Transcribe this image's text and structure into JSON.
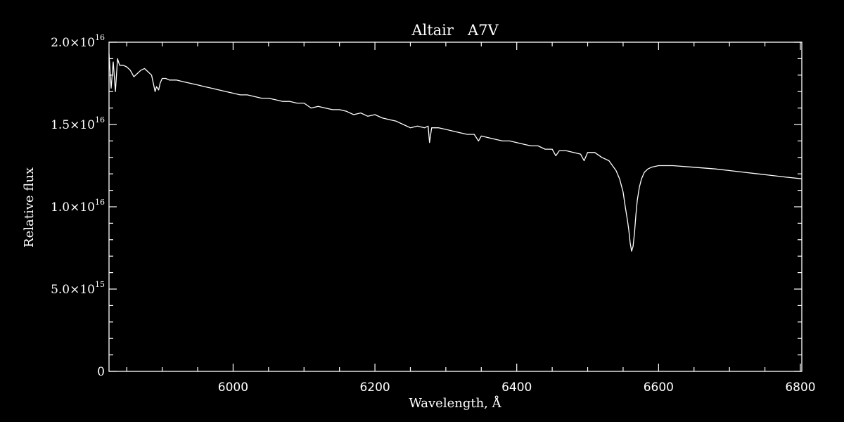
{
  "chart_data": {
    "type": "line",
    "title": "Altair   A7V",
    "xlabel": "Wavelength, Å",
    "ylabel": "Relative flux",
    "xlim": [
      5825,
      6802
    ],
    "ylim": [
      0,
      2e+16
    ],
    "x_ticks": [
      {
        "value": 6000,
        "label": "6000"
      },
      {
        "value": 6200,
        "label": "6200"
      },
      {
        "value": 6400,
        "label": "6400"
      },
      {
        "value": 6600,
        "label": "6600"
      },
      {
        "value": 6800,
        "label": "6800"
      }
    ],
    "y_ticks": [
      {
        "value": 0,
        "mantissa": "0",
        "exp": ""
      },
      {
        "value": 5000000000000000.0,
        "mantissa": "5.0×10",
        "exp": "15"
      },
      {
        "value": 1e+16,
        "mantissa": "1.0×10",
        "exp": "16"
      },
      {
        "value": 1.5e+16,
        "mantissa": "1.5×10",
        "exp": "16"
      },
      {
        "value": 2e+16,
        "mantissa": "2.0×10",
        "exp": "16"
      }
    ],
    "grid": false,
    "colors": {
      "background": "#000000",
      "foreground": "#ffffff"
    },
    "series": [
      {
        "x": [
          5825,
          5828,
          5831,
          5834,
          5837,
          5840,
          5845,
          5850,
          5855,
          5860,
          5865,
          5870,
          5875,
          5880,
          5885,
          5888,
          5890,
          5892,
          5895,
          5897,
          5900,
          5905,
          5910,
          5920,
          5930,
          5940,
          5950,
          5960,
          5970,
          5980,
          5990,
          6000,
          6010,
          6020,
          6030,
          6040,
          6050,
          6060,
          6070,
          6080,
          6090,
          6100,
          6110,
          6120,
          6130,
          6140,
          6150,
          6160,
          6170,
          6180,
          6190,
          6200,
          6210,
          6220,
          6230,
          6240,
          6250,
          6260,
          6270,
          6275,
          6277,
          6280,
          6290,
          6300,
          6310,
          6320,
          6330,
          6340,
          6346,
          6350,
          6360,
          6370,
          6380,
          6390,
          6400,
          6410,
          6420,
          6430,
          6440,
          6450,
          6455,
          6460,
          6470,
          6480,
          6490,
          6495,
          6500,
          6510,
          6520,
          6530,
          6540,
          6545,
          6550,
          6553,
          6556,
          6558,
          6560,
          6562,
          6564,
          6566,
          6568,
          6570,
          6573,
          6576,
          6580,
          6585,
          6590,
          6600,
          6620,
          6650,
          6680,
          6700,
          6720,
          6740,
          6760,
          6780,
          6802
        ],
        "y": [
          1.93e+16,
          1.72e+16,
          1.88e+16,
          1.7e+16,
          1.9e+16,
          1.86e+16,
          1.86e+16,
          1.85e+16,
          1.83e+16,
          1.79e+16,
          1.81e+16,
          1.83e+16,
          1.84e+16,
          1.82e+16,
          1.8e+16,
          1.74e+16,
          1.7e+16,
          1.73e+16,
          1.71e+16,
          1.75e+16,
          1.78e+16,
          1.78e+16,
          1.77e+16,
          1.77e+16,
          1.76e+16,
          1.75e+16,
          1.74e+16,
          1.73e+16,
          1.72e+16,
          1.71e+16,
          1.7e+16,
          1.69e+16,
          1.68e+16,
          1.68e+16,
          1.67e+16,
          1.66e+16,
          1.66e+16,
          1.65e+16,
          1.64e+16,
          1.64e+16,
          1.63e+16,
          1.63e+16,
          1.6e+16,
          1.61e+16,
          1.6e+16,
          1.59e+16,
          1.59e+16,
          1.58e+16,
          1.56e+16,
          1.57e+16,
          1.55e+16,
          1.56e+16,
          1.54e+16,
          1.53e+16,
          1.52e+16,
          1.5e+16,
          1.48e+16,
          1.49e+16,
          1.48e+16,
          1.49e+16,
          1.39e+16,
          1.48e+16,
          1.48e+16,
          1.47e+16,
          1.46e+16,
          1.45e+16,
          1.44e+16,
          1.44e+16,
          1.4e+16,
          1.43e+16,
          1.42e+16,
          1.41e+16,
          1.4e+16,
          1.4e+16,
          1.39e+16,
          1.38e+16,
          1.37e+16,
          1.37e+16,
          1.35e+16,
          1.35e+16,
          1.31e+16,
          1.34e+16,
          1.34e+16,
          1.33e+16,
          1.32e+16,
          1.28e+16,
          1.33e+16,
          1.33e+16,
          1.3e+16,
          1.28e+16,
          1.22e+16,
          1.17e+16,
          1.09e+16,
          1e+16,
          9200000000000000.0,
          8600000000000000.0,
          7800000000000000.0,
          7300000000000000.0,
          7600000000000000.0,
          8400000000000000.0,
          9500000000000000.0,
          1.04e+16,
          1.12e+16,
          1.17e+16,
          1.21e+16,
          1.23e+16,
          1.24e+16,
          1.25e+16,
          1.25e+16,
          1.24e+16,
          1.23e+16,
          1.22e+16,
          1.21e+16,
          1.2e+16,
          1.19e+16,
          1.18e+16,
          1.17e+16
        ]
      }
    ]
  }
}
